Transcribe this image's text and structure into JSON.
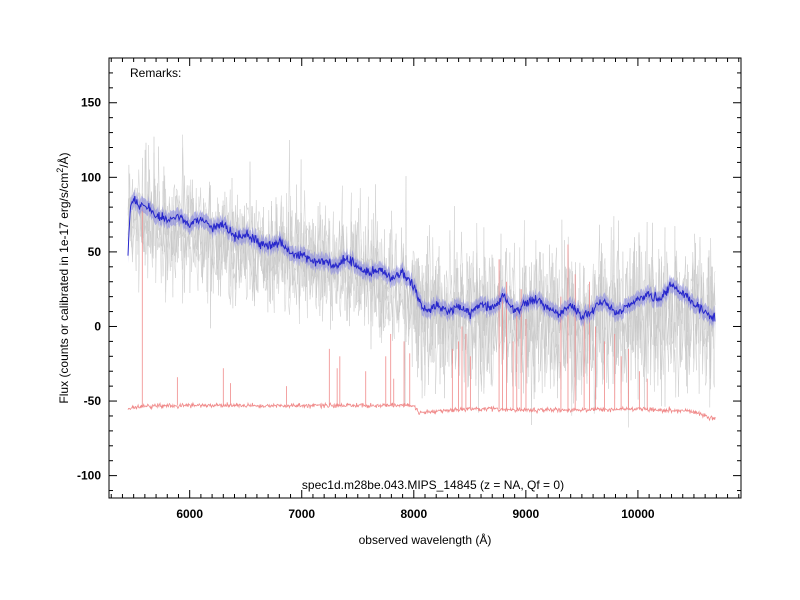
{
  "chart_data": {
    "type": "line",
    "title": "",
    "remarks": "Remarks:",
    "caption": "spec1d.m28be.043.MIPS_14845 (z =   NA, Qf = 0)",
    "xlabel": "observed wavelength (Å)",
    "ylabel": "Flux (counts or calibrated in 1e-17 erg/s/cm²/Å)",
    "ylabel_main": "Flux (counts or calibrated in 1e-17 erg/s/cm",
    "ylabel_sup": "2",
    "ylabel_tail": "/Å)",
    "xlim": [
      5280,
      10920
    ],
    "ylim": [
      -115,
      180
    ],
    "x_ticks": [
      6000,
      7000,
      8000,
      9000,
      10000
    ],
    "y_ticks": [
      -100,
      -50,
      0,
      50,
      100,
      150
    ],
    "x_range": [
      5450,
      10690
    ],
    "grid": false,
    "colors": {
      "raw_spectra": "#c8c8c8",
      "smoothed": "#2727cc",
      "error_band": "#7f7fdf",
      "sky": "#f08a8a"
    },
    "series": [
      {
        "role": "raw-spectra",
        "x": [
          5450,
          5600,
          6000,
          6500,
          7000,
          7500,
          7900,
          8050,
          8400,
          8800,
          9200,
          9600,
          10000,
          10300,
          10690
        ],
        "y": [
          95,
          90,
          82,
          72,
          65,
          55,
          45,
          30,
          25,
          25,
          22,
          25,
          28,
          30,
          25
        ]
      },
      {
        "role": "smoothed-spectrum",
        "x": [
          5450,
          5470,
          5500,
          5550,
          5600,
          5700,
          5800,
          5900,
          6000,
          6100,
          6200,
          6300,
          6400,
          6500,
          6600,
          6700,
          6800,
          6900,
          7000,
          7100,
          7200,
          7300,
          7400,
          7500,
          7600,
          7700,
          7800,
          7900,
          7960,
          8000,
          8050,
          8100,
          8200,
          8300,
          8400,
          8500,
          8600,
          8700,
          8800,
          8900,
          9000,
          9100,
          9200,
          9300,
          9400,
          9500,
          9600,
          9700,
          9800,
          9900,
          10000,
          10100,
          10200,
          10300,
          10400,
          10500,
          10600,
          10690
        ],
        "y": [
          48,
          82,
          84,
          80,
          82,
          74,
          72,
          74,
          68,
          72,
          66,
          68,
          60,
          62,
          57,
          54,
          56,
          50,
          48,
          44,
          44,
          40,
          46,
          40,
          36,
          38,
          32,
          36,
          32,
          28,
          16,
          10,
          14,
          10,
          14,
          8,
          16,
          12,
          20,
          10,
          16,
          18,
          12,
          8,
          14,
          6,
          12,
          18,
          8,
          14,
          18,
          22,
          18,
          28,
          22,
          16,
          10,
          6
        ]
      },
      {
        "role": "sky-spectrum",
        "x": [
          5450,
          5600,
          6000,
          6500,
          7000,
          7500,
          8000,
          8050,
          8500,
          9000,
          9500,
          10000,
          10500,
          10690
        ],
        "y": [
          -55,
          -53,
          -53,
          -53,
          -53,
          -53,
          -53,
          -58,
          -55,
          -56,
          -56,
          -55,
          -57,
          -62
        ]
      }
    ],
    "sky_lines": [
      {
        "x": 5577,
        "y": 80
      },
      {
        "x": 5890,
        "y": -34
      },
      {
        "x": 6300,
        "y": -28
      },
      {
        "x": 6364,
        "y": -38
      },
      {
        "x": 6863,
        "y": -40
      },
      {
        "x": 7246,
        "y": -15
      },
      {
        "x": 7316,
        "y": -28
      },
      {
        "x": 7340,
        "y": -20
      },
      {
        "x": 7571,
        "y": -30
      },
      {
        "x": 7750,
        "y": -20
      },
      {
        "x": 7794,
        "y": -5
      },
      {
        "x": 7821,
        "y": -35
      },
      {
        "x": 7913,
        "y": -10
      },
      {
        "x": 7964,
        "y": -18
      },
      {
        "x": 8344,
        "y": -15
      },
      {
        "x": 8399,
        "y": -10
      },
      {
        "x": 8430,
        "y": 0
      },
      {
        "x": 8465,
        "y": -5
      },
      {
        "x": 8505,
        "y": -20
      },
      {
        "x": 8761,
        "y": 45
      },
      {
        "x": 8791,
        "y": 20
      },
      {
        "x": 8827,
        "y": 30
      },
      {
        "x": 8886,
        "y": -10
      },
      {
        "x": 8919,
        "y": 10
      },
      {
        "x": 8958,
        "y": 25
      },
      {
        "x": 9001,
        "y": 5
      },
      {
        "x": 9313,
        "y": 20
      },
      {
        "x": 9376,
        "y": 55
      },
      {
        "x": 9440,
        "y": 35
      },
      {
        "x": 9520,
        "y": 10
      },
      {
        "x": 9569,
        "y": 30
      },
      {
        "x": 9621,
        "y": 0
      },
      {
        "x": 9702,
        "y": -10
      },
      {
        "x": 9793,
        "y": -5
      },
      {
        "x": 9850,
        "y": -20
      },
      {
        "x": 9916,
        "y": -15
      },
      {
        "x": 10013,
        "y": -30
      },
      {
        "x": 10083,
        "y": -35
      }
    ]
  }
}
